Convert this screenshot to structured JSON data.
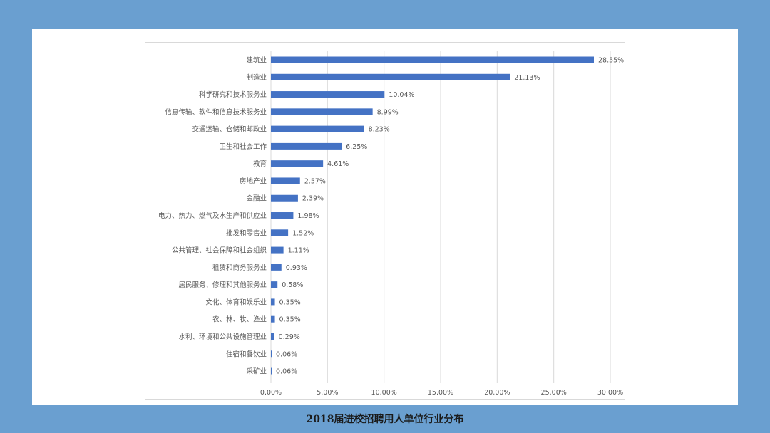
{
  "caption": "2018届进校招聘用人单位行业分布",
  "colors": {
    "background": "#6a9fd0",
    "bar": "#4472c4",
    "grid": "#d9d9d9",
    "text": "#595959"
  },
  "chart_data": {
    "type": "bar",
    "orientation": "horizontal",
    "categories": [
      "建筑业",
      "制造业",
      "科学研究和技术服务业",
      "信息传输、软件和信息技术服务业",
      "交通运输、仓储和邮政业",
      "卫生和社会工作",
      "教育",
      "房地产业",
      "金融业",
      "电力、热力、燃气及水生产和供应业",
      "批发和零售业",
      "公共管理、社会保障和社会组织",
      "租赁和商务服务业",
      "居民服务、修理和其他服务业",
      "文化、体育和娱乐业",
      "农、林、牧、渔业",
      "水利、环境和公共设施管理业",
      "住宿和餐饮业",
      "采矿业"
    ],
    "values": [
      28.55,
      21.13,
      10.04,
      8.99,
      8.23,
      6.25,
      4.61,
      2.57,
      2.39,
      1.98,
      1.52,
      1.11,
      0.93,
      0.58,
      0.35,
      0.35,
      0.29,
      0.06,
      0.06
    ],
    "value_labels": [
      "28.55%",
      "21.13%",
      "10.04%",
      "8.99%",
      "8.23%",
      "6.25%",
      "4.61%",
      "2.57%",
      "2.39%",
      "1.98%",
      "1.52%",
      "1.11%",
      "0.93%",
      "0.58%",
      "0.35%",
      "0.35%",
      "0.29%",
      "0.06%",
      "0.06%"
    ],
    "xlim": [
      0,
      30
    ],
    "xticks": [
      0,
      5,
      10,
      15,
      20,
      25,
      30
    ],
    "xtick_labels": [
      "0.00%",
      "5.00%",
      "10.00%",
      "15.00%",
      "20.00%",
      "25.00%",
      "30.00%"
    ],
    "grid": "vertical",
    "legend": "none"
  }
}
